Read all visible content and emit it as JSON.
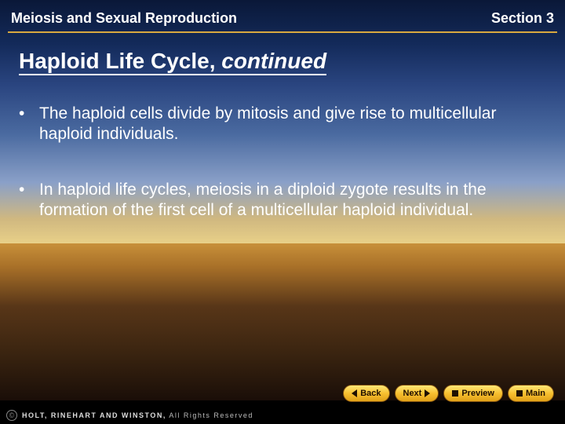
{
  "header": {
    "left": "Meiosis and Sexual Reproduction",
    "right": "Section 3",
    "underline_color": "#d8a840"
  },
  "title": {
    "main": "Haploid Life Cycle,",
    "continued": "continued"
  },
  "bullets": [
    "The haploid cells divide by mitosis and give rise to multicellular haploid individuals.",
    "In haploid life cycles, meiosis in a diploid zygote results in the formation of the first cell of a multicellular haploid individual."
  ],
  "nav": {
    "back": "Back",
    "next": "Next",
    "preview": "Preview",
    "main": "Main"
  },
  "footer": {
    "copyright_symbol": "©",
    "publisher": "HOLT, RINEHART AND WINSTON,",
    "rights": " All Rights Reserved"
  },
  "colors": {
    "text": "#ffffff",
    "nav_bg_top": "#ffe878",
    "nav_bg_bottom": "#e0a018",
    "footer_bg": "#000000"
  }
}
